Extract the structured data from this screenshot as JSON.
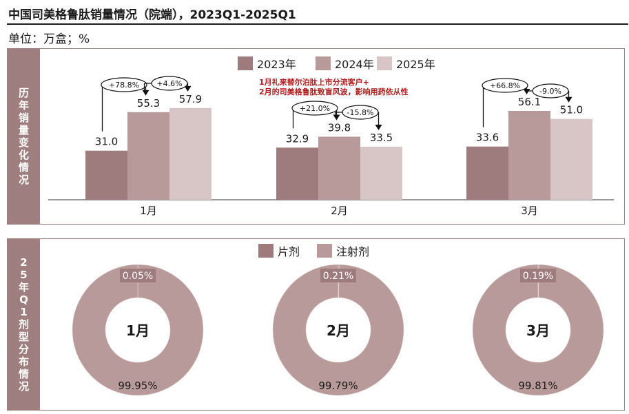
{
  "title": "中国司美格鲁肽销量情况（院端），2023Q1-2025Q1",
  "unit": "单位：万盒；%",
  "top_panel_label": "历年销量变化情况",
  "bottom_panel_label": "25年Q1剂型分布情况",
  "colors": {
    "c2023": "#9e7b7c",
    "c2024": "#b89a9a",
    "c2025": "#d8c5c5",
    "panel": "#9e7e7f"
  },
  "note_lines": [
    "1月礼来替尔泊肽上市分流客户+",
    "2月的司美格鲁肽致盲风波，影响用药依从性"
  ],
  "chart_data": [
    {
      "type": "bar",
      "categories": [
        "1月",
        "2月",
        "3月"
      ],
      "series": [
        {
          "name": "2023年",
          "values": [
            31.0,
            32.9,
            33.6
          ],
          "labels": [
            "31.0",
            "32.9",
            "33.6"
          ]
        },
        {
          "name": "2024年",
          "values": [
            55.3,
            39.8,
            56.1
          ],
          "labels": [
            "55.3",
            "39.8",
            "56.1"
          ]
        },
        {
          "name": "2025年",
          "values": [
            57.9,
            33.5,
            51.0
          ],
          "labels": [
            "57.9",
            "33.5",
            "51.0"
          ]
        }
      ],
      "growth_yoy_2024": [
        "+78.8%",
        "+21.0%",
        "+66.8%"
      ],
      "growth_yoy_2025": [
        "+4.6%",
        "-15.8%",
        "-9.0%"
      ],
      "legend_position": "top-center",
      "ylim": [
        0,
        70
      ]
    },
    {
      "type": "pie",
      "donut": true,
      "legend": [
        "片剂",
        "注射剂"
      ],
      "legend_position": "top-center",
      "charts": [
        {
          "center_label": "1月",
          "values": [
            0.05,
            99.95
          ],
          "labels": [
            "0.05%",
            "99.95%"
          ]
        },
        {
          "center_label": "2月",
          "values": [
            0.21,
            99.79
          ],
          "labels": [
            "0.21%",
            "99.79%"
          ]
        },
        {
          "center_label": "3月",
          "values": [
            0.19,
            99.81
          ],
          "labels": [
            "0.19%",
            "99.81%"
          ]
        }
      ]
    }
  ]
}
